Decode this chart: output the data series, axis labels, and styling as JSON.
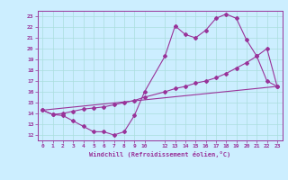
{
  "xlabel": "Windchill (Refroidissement éolien,°C)",
  "bg_color": "#cceeff",
  "line_color": "#993399",
  "grid_color": "#aadddd",
  "ylim": [
    11.5,
    23.5
  ],
  "xlim": [
    -0.5,
    23.5
  ],
  "yticks": [
    12,
    13,
    14,
    15,
    16,
    17,
    18,
    19,
    20,
    21,
    22,
    23
  ],
  "xticks": [
    0,
    1,
    2,
    3,
    4,
    5,
    6,
    7,
    8,
    9,
    10,
    12,
    13,
    14,
    15,
    16,
    17,
    18,
    19,
    20,
    21,
    22,
    23
  ],
  "line1_x": [
    0,
    1,
    2,
    3,
    4,
    5,
    6,
    7,
    8,
    9,
    10,
    12,
    13,
    14,
    15,
    16,
    17,
    18,
    19,
    20,
    21,
    22,
    23
  ],
  "line1_y": [
    14.3,
    13.9,
    13.8,
    13.3,
    12.8,
    12.3,
    12.3,
    12.0,
    12.3,
    13.8,
    16.0,
    19.3,
    22.1,
    21.3,
    21.0,
    21.7,
    22.8,
    23.2,
    22.8,
    20.8,
    19.3,
    17.0,
    16.5
  ],
  "line2_x": [
    0,
    1,
    2,
    3,
    4,
    5,
    6,
    7,
    8,
    9,
    10,
    12,
    13,
    14,
    15,
    16,
    17,
    18,
    19,
    20,
    21,
    22,
    23
  ],
  "line2_y": [
    14.3,
    13.9,
    14.0,
    14.2,
    14.4,
    14.5,
    14.6,
    14.8,
    15.0,
    15.2,
    15.5,
    16.0,
    16.3,
    16.5,
    16.8,
    17.0,
    17.3,
    17.7,
    18.2,
    18.7,
    19.3,
    20.0,
    16.5
  ],
  "line3_x": [
    0,
    23
  ],
  "line3_y": [
    14.3,
    16.5
  ]
}
